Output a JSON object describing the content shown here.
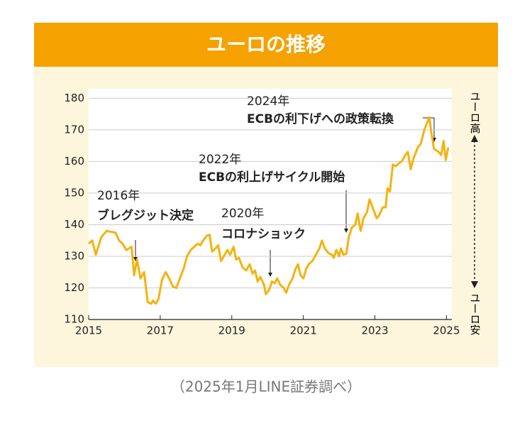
{
  "chart_data": {
    "type": "line",
    "title": "ユーロの推移",
    "source": "（2025年1月LINE証券調べ）",
    "side_labels": {
      "top": "ユーロ高",
      "bottom": "ユーロ安"
    },
    "annotations": [
      {
        "year": "2016年",
        "text": "ブレグジット決定"
      },
      {
        "year": "2020年",
        "text": "コロナショック"
      },
      {
        "year": "2022年",
        "text": "ECBの利上げサイクル開始"
      },
      {
        "year": "2024年",
        "text": "ECBの利下げへの政策転換"
      }
    ],
    "color": "#f5b20f",
    "x": [
      2015.0,
      2015.1,
      2015.2,
      2015.35,
      2015.5,
      2015.75,
      2015.85,
      2015.95,
      2016.05,
      2016.2,
      2016.27,
      2016.35,
      2016.45,
      2016.55,
      2016.65,
      2016.75,
      2016.8,
      2016.88,
      2016.95,
      2017.05,
      2017.15,
      2017.25,
      2017.35,
      2017.45,
      2017.55,
      2017.65,
      2017.75,
      2017.85,
      2017.95,
      2018.05,
      2018.12,
      2018.2,
      2018.3,
      2018.38,
      2018.45,
      2018.55,
      2018.62,
      2018.7,
      2018.8,
      2018.88,
      2018.95,
      2019.05,
      2019.12,
      2019.2,
      2019.3,
      2019.4,
      2019.5,
      2019.58,
      2019.65,
      2019.72,
      2019.8,
      2019.9,
      2019.95,
      2020.05,
      2020.12,
      2020.2,
      2020.27,
      2020.35,
      2020.45,
      2020.52,
      2020.6,
      2020.7,
      2020.78,
      2020.85,
      2020.92,
      2021.0,
      2021.08,
      2021.15,
      2021.25,
      2021.35,
      2021.45,
      2021.52,
      2021.6,
      2021.7,
      2021.8,
      2021.85,
      2021.92,
      2022.0,
      2022.05,
      2022.12,
      2022.2,
      2022.27,
      2022.35,
      2022.45,
      2022.52,
      2022.6,
      2022.68,
      2022.78,
      2022.85,
      2022.95,
      2023.05,
      2023.12,
      2023.22,
      2023.3,
      2023.35,
      2023.42,
      2023.5,
      2023.58,
      2023.68,
      2023.75,
      2023.85,
      2023.92,
      2024.0,
      2024.08,
      2024.2,
      2024.28,
      2024.38,
      2024.45,
      2024.52,
      2024.58,
      2024.65,
      2024.78,
      2024.85,
      2024.92,
      2024.98,
      2025.05
    ],
    "values": [
      134,
      135,
      130.5,
      136,
      138,
      137.5,
      135,
      134,
      132,
      133,
      124,
      129,
      123,
      125,
      115.5,
      115,
      116,
      115,
      116.5,
      122.5,
      125,
      123,
      120.5,
      120,
      123,
      126,
      130,
      132,
      133,
      134,
      133.5,
      135,
      136.5,
      136.8,
      131.5,
      132.5,
      133.5,
      128.5,
      130.5,
      132,
      130.5,
      133,
      129,
      129.5,
      126.5,
      125.5,
      127.5,
      124.5,
      125.5,
      122,
      123.5,
      121,
      118,
      119.5,
      122,
      121.5,
      123,
      121,
      120,
      118.5,
      121,
      123,
      126,
      127.5,
      124,
      123,
      126,
      127.5,
      128.5,
      130.5,
      132.5,
      135,
      132.5,
      131,
      130.5,
      129.5,
      132,
      130,
      132.5,
      130.5,
      130.8,
      136,
      139,
      140,
      143.5,
      138,
      142,
      144,
      148,
      145,
      142,
      143,
      145.5,
      145.5,
      151.5,
      150.5,
      159,
      158.5,
      159.5,
      160,
      162,
      163,
      157.5,
      161,
      164.5,
      165.5,
      170,
      172,
      174,
      169,
      164,
      163,
      162,
      166.5,
      160.5,
      164.5
    ],
    "xlim": [
      2015,
      2025.15
    ],
    "ylim": [
      110,
      183
    ],
    "xticks": [
      2015,
      2017,
      2019,
      2021,
      2023,
      2025
    ],
    "yticks": [
      110,
      120,
      130,
      140,
      150,
      160,
      170,
      180
    ],
    "grid": true
  }
}
